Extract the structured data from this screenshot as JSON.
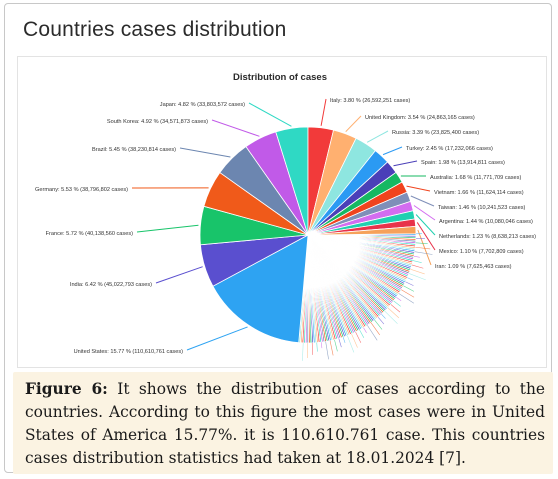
{
  "header": {
    "title": "Countries cases distribution"
  },
  "caption": {
    "label": "Figure 6:",
    "text": " It shows the distribution of cases according to the countries. According to this figure the most cases were in United States of America 15.77%. it is 110.610.761 case. This countries cases distribution statistics had taken at 18.01.2024 [7]."
  },
  "chart_data": {
    "type": "pie",
    "title": "Distribution of cases",
    "slices": [
      {
        "label": "United States: 15.77 % (110,610,761 cases)",
        "percent": 15.77,
        "color": "#2ea3f2"
      },
      {
        "label": "India: 6.42 % (45,022,793 cases)",
        "percent": 6.42,
        "color": "#5a4fcf"
      },
      {
        "label": "France: 5.72 % (40,138,560 cases)",
        "percent": 5.72,
        "color": "#18c46a"
      },
      {
        "label": "Germany: 5.53 % (38,796,802 cases)",
        "percent": 5.53,
        "color": "#f05a1a"
      },
      {
        "label": "Brazil: 5.45 % (38,230,814 cases)",
        "percent": 5.45,
        "color": "#6c86b0"
      },
      {
        "label": "South Korea: 4.92 % (34,571,873 cases)",
        "percent": 4.92,
        "color": "#c15ae8"
      },
      {
        "label": "Japan: 4.82 % (33,803,572 cases)",
        "percent": 4.82,
        "color": "#2fd9c4"
      },
      {
        "label": "Italy: 3.80 % (26,592,251 cases)",
        "percent": 3.8,
        "color": "#f23a3a"
      },
      {
        "label": "United Kingdom: 3.54 % (24,863,165 cases)",
        "percent": 3.54,
        "color": "#ffb070"
      },
      {
        "label": "Russia: 3.39 % (23,825,400 cases)",
        "percent": 3.39,
        "color": "#8ee6e0"
      },
      {
        "label": "Turkey: 2.45 % (17,232,066 cases)",
        "percent": 2.45,
        "color": "#2b9af3"
      },
      {
        "label": "Spain: 1.98 % (13,914,811 cases)",
        "percent": 1.98,
        "color": "#4a3fb8"
      },
      {
        "label": "Australia: 1.68 % (11,771,709 cases)",
        "percent": 1.68,
        "color": "#16b862"
      },
      {
        "label": "Vietnam: 1.66 % (11,624,114 cases)",
        "percent": 1.66,
        "color": "#f0431d"
      },
      {
        "label": "Taiwan: 1.46 % (10,241,523 cases)",
        "percent": 1.46,
        "color": "#7f8fb8"
      },
      {
        "label": "Argentina: 1.44 % (10,080,046 cases)",
        "percent": 1.44,
        "color": "#d36cf0"
      },
      {
        "label": "Netherlands: 1.23 % (8,638,213 cases)",
        "percent": 1.23,
        "color": "#20d0b0"
      },
      {
        "label": "Mexico: 1.10 % (7,702,809 cases)",
        "percent": 1.1,
        "color": "#e8324a"
      },
      {
        "label": "Iran: 1.09 % (7,625,463 cases)",
        "percent": 1.09,
        "color": "#f6a15a"
      }
    ],
    "other_slice_colors": [
      "#2ea3f2",
      "#5a4fcf",
      "#18c46a",
      "#f05a1a",
      "#6c86b0",
      "#c15ae8",
      "#2fd9c4",
      "#f23a3a",
      "#ffb070",
      "#8ee6e0"
    ]
  }
}
